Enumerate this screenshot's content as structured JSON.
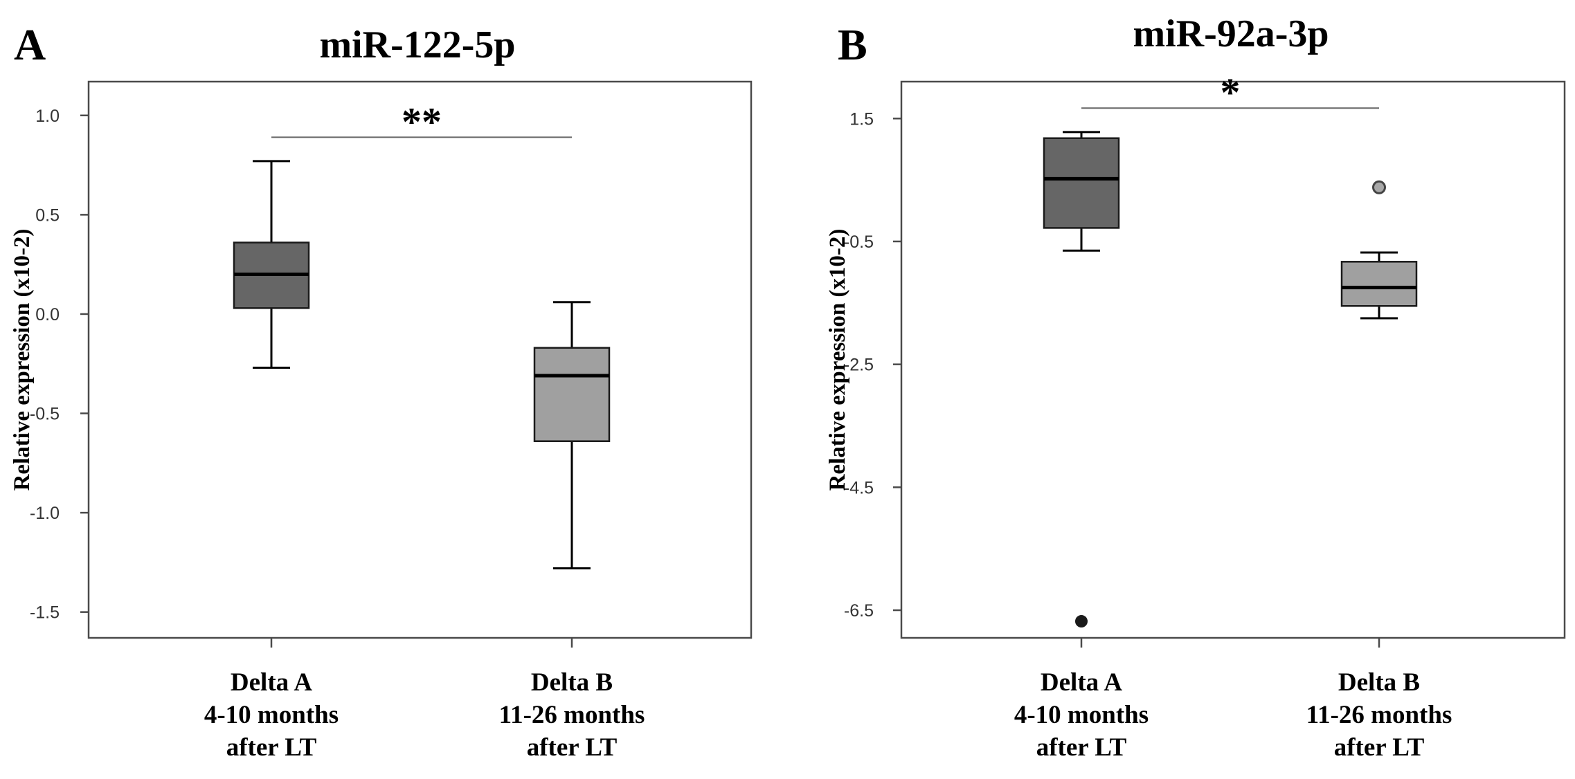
{
  "figure": {
    "panels": [
      {
        "letter": "A",
        "chart_data": {
          "type": "box",
          "title": "miR-122-5p",
          "xlabel": "",
          "ylabel": "Relative expression (x10-2)",
          "ylim": [
            -1.63,
            1.17
          ],
          "yticks": [
            "1.0",
            "0.5",
            "0.0",
            "-0.5",
            "-1.0",
            "-1.5"
          ],
          "ytick_values": [
            1.0,
            0.5,
            0.0,
            -0.5,
            -1.0,
            -1.5
          ],
          "categories": [
            [
              "Delta A",
              "4-10 months",
              "after LT"
            ],
            [
              "Delta B",
              "11-26 months",
              "after LT"
            ]
          ],
          "boxes": [
            {
              "whisker_low": -0.27,
              "q1": 0.03,
              "median": 0.2,
              "q3": 0.36,
              "whisker_high": 0.77,
              "outliers": [],
              "color": "#666666"
            },
            {
              "whisker_low": -1.28,
              "q1": -0.64,
              "median": -0.31,
              "q3": -0.17,
              "whisker_high": 0.06,
              "outliers": [],
              "color": "#a0a0a0"
            }
          ],
          "significance": {
            "label": "**",
            "between": [
              0,
              1
            ],
            "y": 0.89
          },
          "grid": false
        }
      },
      {
        "letter": "B",
        "chart_data": {
          "type": "box",
          "title": "miR-92a-3p",
          "xlabel": "",
          "ylabel": "Relative expression (x10-2)",
          "ylim": [
            -6.95,
            2.1
          ],
          "yticks": [
            "1.5",
            "-0.5",
            "-2.5",
            "-4.5",
            "-6.5"
          ],
          "ytick_values": [
            1.5,
            -0.5,
            -2.5,
            -4.5,
            -6.5
          ],
          "categories": [
            [
              "Delta A",
              "4-10 months",
              "after LT"
            ],
            [
              "Delta B",
              "11-26 months",
              "after LT"
            ]
          ],
          "boxes": [
            {
              "whisker_low": -0.65,
              "q1": -0.28,
              "median": 0.52,
              "q3": 1.18,
              "whisker_high": 1.28,
              "outliers": [
                {
                  "value": -6.68,
                  "style": "filled"
                }
              ],
              "color": "#666666"
            },
            {
              "whisker_low": -1.75,
              "q1": -1.55,
              "median": -1.25,
              "q3": -0.83,
              "whisker_high": -0.68,
              "outliers": [
                {
                  "value": 0.38,
                  "style": "open"
                }
              ],
              "color": "#a0a0a0"
            }
          ],
          "significance": {
            "label": "*",
            "between": [
              0,
              1
            ],
            "y": 1.67
          },
          "grid": false
        }
      }
    ]
  }
}
